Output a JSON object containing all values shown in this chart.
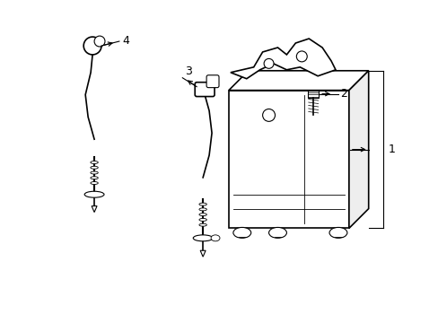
{
  "background_color": "#ffffff",
  "line_color": "#000000",
  "line_width": 1.2,
  "fig_width": 4.89,
  "fig_height": 3.6,
  "dpi": 100,
  "label_fontsize": 9
}
